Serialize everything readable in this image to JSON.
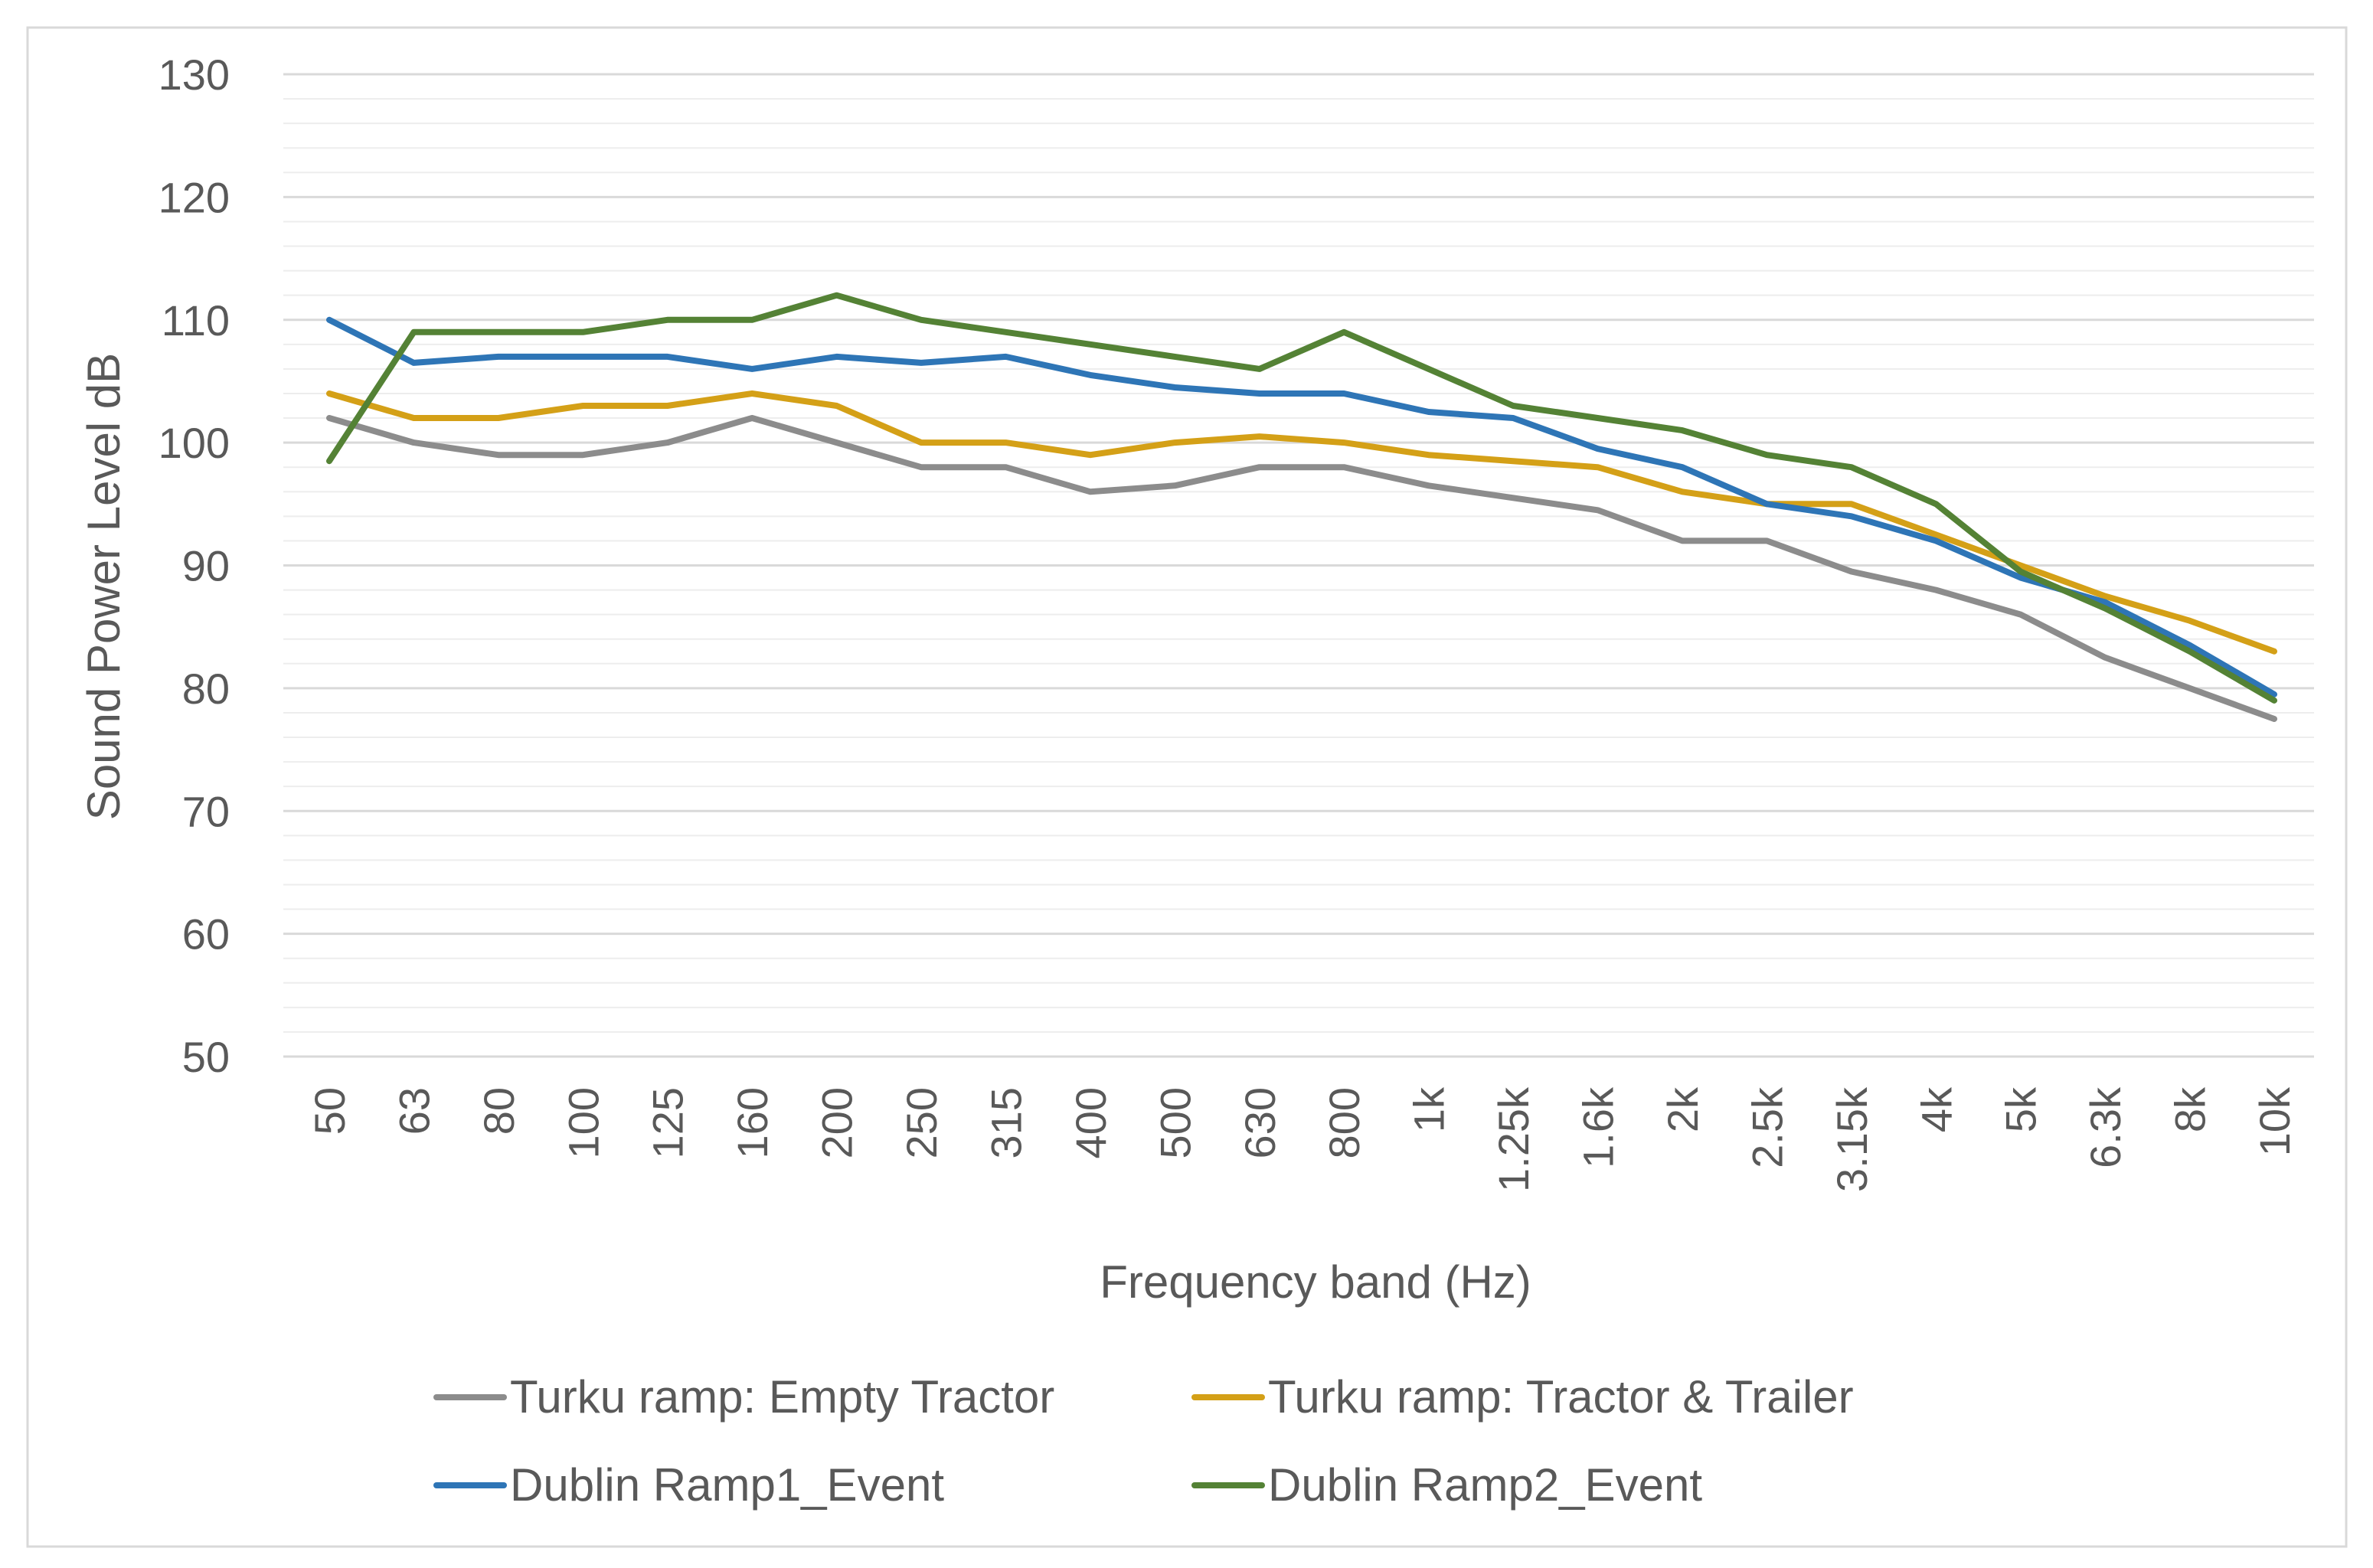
{
  "chart_data": {
    "type": "line",
    "title": "",
    "xlabel": "Frequency band (Hz)",
    "ylabel": "Sound Power Level dB",
    "ylim": [
      50,
      130
    ],
    "y_major_ticks": [
      50,
      60,
      70,
      80,
      90,
      100,
      110,
      120,
      130
    ],
    "y_minor_step": 2,
    "grid": true,
    "legend_position": "bottom",
    "categories": [
      "50",
      "63",
      "80",
      "100",
      "125",
      "160",
      "200",
      "250",
      "315",
      "400",
      "500",
      "630",
      "800",
      "1k",
      "1.25k",
      "1.6k",
      "2k",
      "2.5k",
      "3.15k",
      "4k",
      "5k",
      "6.3k",
      "8k",
      "10k"
    ],
    "series": [
      {
        "name": "Turku ramp: Empty Tractor",
        "color": "#8c8c8c",
        "values": [
          102,
          100,
          99,
          99,
          100,
          102,
          100,
          98,
          98,
          96,
          96.5,
          98,
          98,
          96.5,
          95.5,
          94.5,
          92,
          92,
          89.5,
          88,
          86,
          82.5,
          80,
          77.5
        ]
      },
      {
        "name": "Turku ramp: Tractor & Trailer",
        "color": "#d4a017",
        "values": [
          104,
          102,
          102,
          103,
          103,
          104,
          103,
          100,
          100,
          99,
          100,
          100.5,
          100,
          99,
          98.5,
          98,
          96,
          95,
          95,
          92.5,
          90,
          87.5,
          85.5,
          83
        ]
      },
      {
        "name": "Dublin Ramp1_Event",
        "color": "#2e75b6",
        "values": [
          110,
          106.5,
          107,
          107,
          107,
          106,
          107,
          106.5,
          107,
          105.5,
          104.5,
          104,
          104,
          102.5,
          102,
          99.5,
          98,
          95,
          94,
          92,
          89,
          87,
          83.5,
          79.5
        ]
      },
      {
        "name": "Dublin Ramp2_Event",
        "color": "#548235",
        "values": [
          98.5,
          109,
          109,
          109,
          110,
          110,
          112,
          110,
          109,
          108,
          107,
          106,
          109,
          106,
          103,
          102,
          101,
          99,
          98,
          95,
          89.5,
          86.5,
          83,
          79
        ]
      }
    ]
  }
}
